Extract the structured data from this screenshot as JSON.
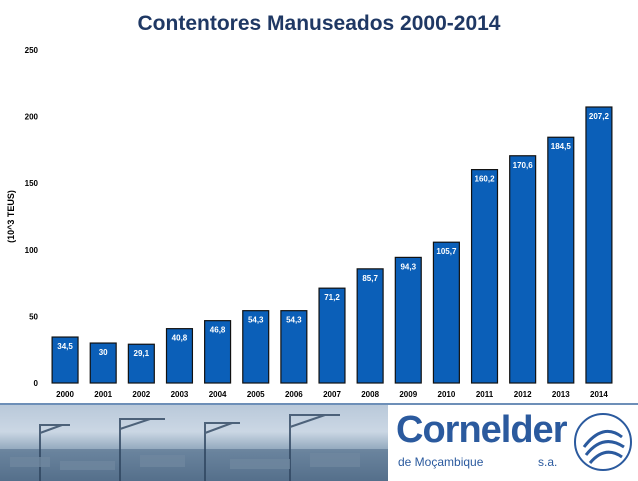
{
  "chart_data": {
    "type": "bar",
    "title": "Contentores Manuseados 2000-2014",
    "ylabel": "(10^3 TEUS)",
    "xlabel": "",
    "categories": [
      "2000",
      "2001",
      "2002",
      "2003",
      "2004",
      "2005",
      "2006",
      "2007",
      "2008",
      "2009",
      "2010",
      "2011",
      "2012",
      "2013",
      "2014"
    ],
    "values": [
      34.5,
      30,
      29.1,
      40.8,
      46.8,
      54.3,
      54.3,
      71.2,
      85.7,
      94.3,
      105.7,
      160.2,
      170.6,
      184.5,
      207.2
    ],
    "data_labels": [
      "34,5",
      "30",
      "29,1",
      "40,8",
      "46,8",
      "54,3",
      "54,3",
      "71,2",
      "85,7",
      "94,3",
      "105,7",
      "160,2",
      "170,6",
      "184,5",
      "207,2"
    ],
    "ylim": [
      0,
      250
    ],
    "yticks": [
      0,
      50,
      100,
      150,
      200,
      250
    ],
    "grid": false,
    "legend": "none",
    "bar_color": "#0b5fb8",
    "bar_edge_color": "#111111",
    "label_color": "#ffffff"
  },
  "footer": {
    "logo_brand": "Cornelder",
    "logo_subtitle": "de Moçambique",
    "logo_suffix": "s.a.",
    "logo_color": "#2b5a9e"
  }
}
